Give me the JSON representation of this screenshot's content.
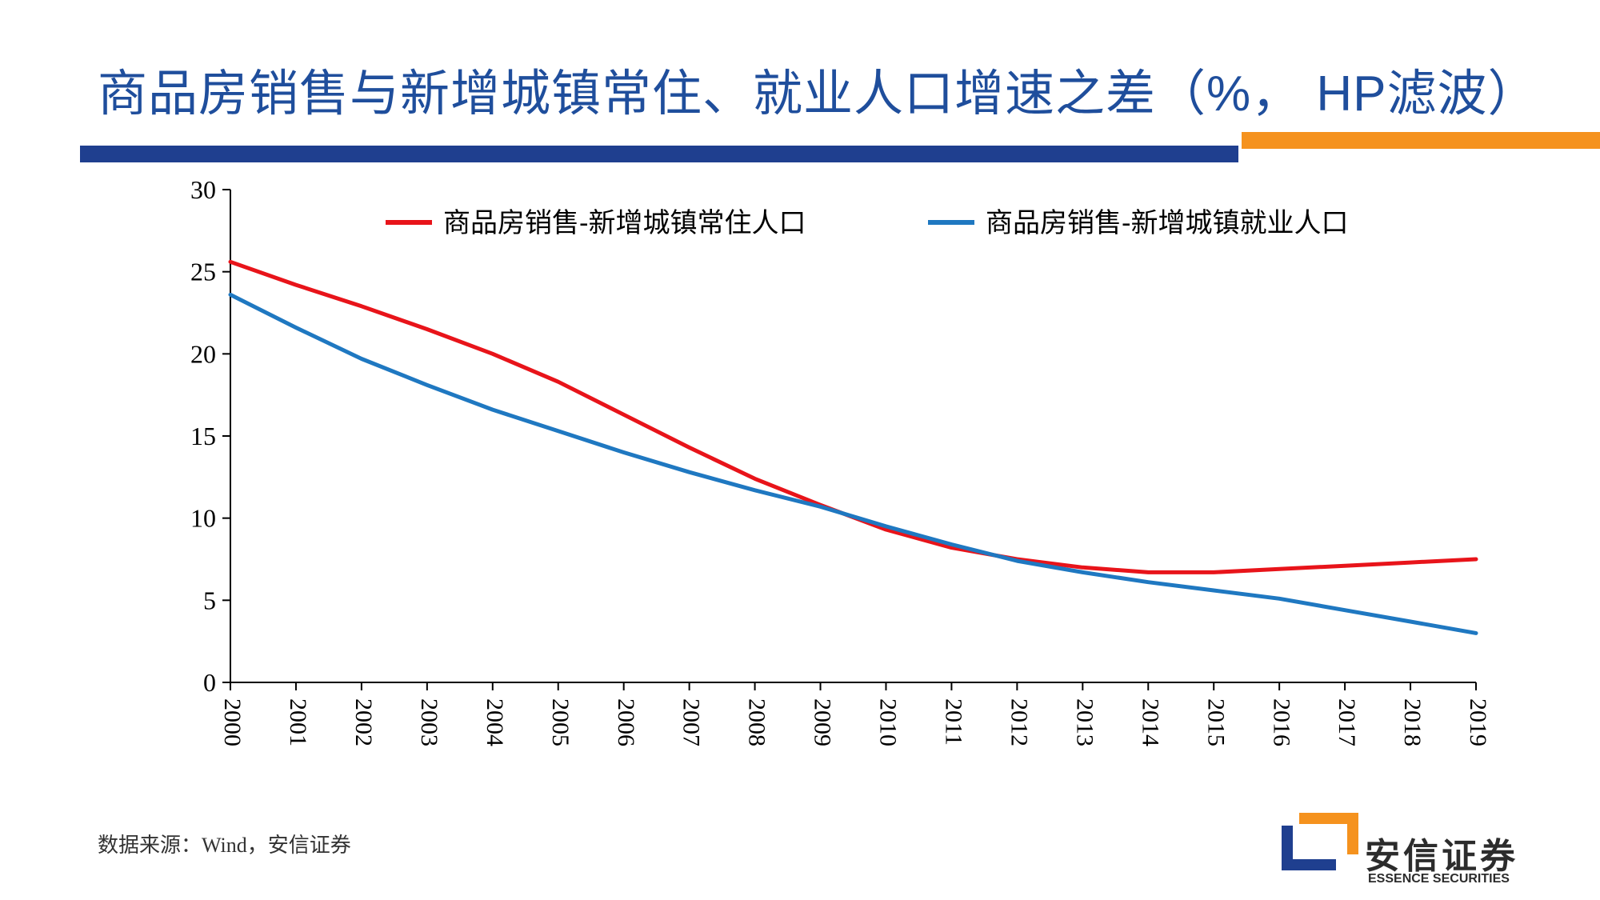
{
  "title": "商品房销售与新增城镇常住、就业人口增速之差（%， HP滤波）",
  "source": "数据来源：Wind，安信证券",
  "logo": {
    "cn": "安信证券",
    "en": "ESSENCE SECURITIES"
  },
  "colors": {
    "title": "#1f4e9c",
    "bar_blue": "#1f3f8f",
    "bar_orange": "#f5921e",
    "series_red": "#e8141a",
    "series_blue": "#1f78c1"
  },
  "chart_data": {
    "type": "line",
    "x": [
      "2000",
      "2001",
      "2002",
      "2003",
      "2004",
      "2005",
      "2006",
      "2007",
      "2008",
      "2009",
      "2010",
      "2011",
      "2012",
      "2013",
      "2014",
      "2015",
      "2016",
      "2017",
      "2018",
      "2019"
    ],
    "ylim": [
      0,
      30
    ],
    "yticks": [
      0,
      5,
      10,
      15,
      20,
      25,
      30
    ],
    "grid": false,
    "legend": "top",
    "series": [
      {
        "name": "商品房销售-新增城镇常住人口",
        "color": "#e8141a",
        "values": [
          25.6,
          24.2,
          22.9,
          21.5,
          20.0,
          18.3,
          16.3,
          14.3,
          12.4,
          10.8,
          9.3,
          8.2,
          7.5,
          7.0,
          6.7,
          6.7,
          6.9,
          7.1,
          7.3,
          7.5
        ]
      },
      {
        "name": "商品房销售-新增城镇就业人口",
        "color": "#1f78c1",
        "values": [
          23.6,
          21.6,
          19.7,
          18.1,
          16.6,
          15.3,
          14.0,
          12.8,
          11.7,
          10.7,
          9.5,
          8.4,
          7.4,
          6.7,
          6.1,
          5.6,
          5.1,
          4.4,
          3.7,
          3.0
        ]
      }
    ]
  }
}
